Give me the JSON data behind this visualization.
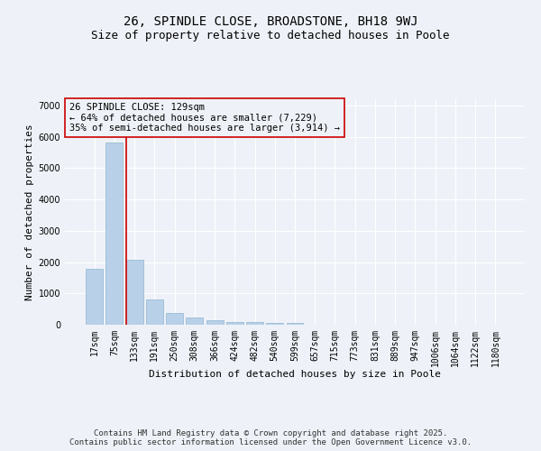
{
  "title_line1": "26, SPINDLE CLOSE, BROADSTONE, BH18 9WJ",
  "title_line2": "Size of property relative to detached houses in Poole",
  "xlabel": "Distribution of detached houses by size in Poole",
  "ylabel": "Number of detached properties",
  "categories": [
    "17sqm",
    "75sqm",
    "133sqm",
    "191sqm",
    "250sqm",
    "308sqm",
    "366sqm",
    "424sqm",
    "482sqm",
    "540sqm",
    "599sqm",
    "657sqm",
    "715sqm",
    "773sqm",
    "831sqm",
    "889sqm",
    "947sqm",
    "1006sqm",
    "1064sqm",
    "1122sqm",
    "1180sqm"
  ],
  "values": [
    1780,
    5820,
    2080,
    820,
    380,
    220,
    135,
    95,
    75,
    60,
    50,
    0,
    0,
    0,
    0,
    0,
    0,
    0,
    0,
    0,
    0
  ],
  "bar_color": "#b8d0e8",
  "bar_edge_color": "#90b4d0",
  "vline_color": "#cc0000",
  "vline_x_index": 2,
  "annotation_text_line1": "26 SPINDLE CLOSE: 129sqm",
  "annotation_text_line2": "← 64% of detached houses are smaller (7,229)",
  "annotation_text_line3": "35% of semi-detached houses are larger (3,914) →",
  "ylim_max": 7200,
  "yticks": [
    0,
    1000,
    2000,
    3000,
    4000,
    5000,
    6000,
    7000
  ],
  "background_color": "#eef2f8",
  "grid_color": "#ffffff",
  "footer_text": "Contains HM Land Registry data © Crown copyright and database right 2025.\nContains public sector information licensed under the Open Government Licence v3.0.",
  "title_fontsize": 10,
  "subtitle_fontsize": 9,
  "annotation_fontsize": 7.5,
  "axis_label_fontsize": 8,
  "tick_fontsize": 7,
  "footer_fontsize": 6.5
}
